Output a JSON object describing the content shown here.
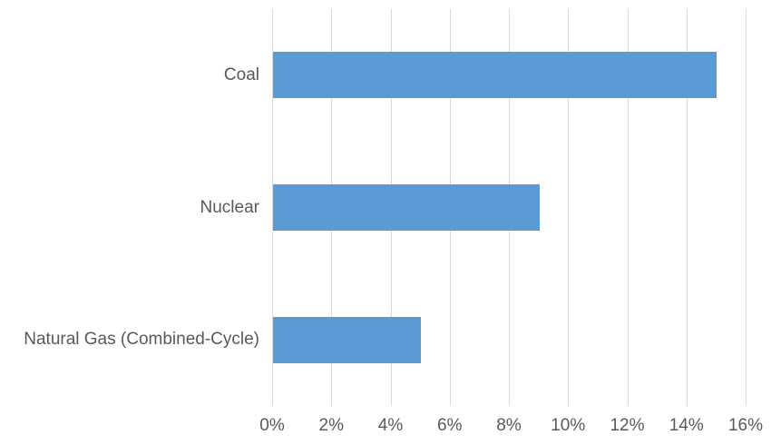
{
  "chart_data": {
    "type": "bar",
    "orientation": "horizontal",
    "title": "",
    "xlabel": "",
    "ylabel": "",
    "categories": [
      "Coal",
      "Nuclear",
      "Natural Gas (Combined-Cycle)"
    ],
    "values": [
      15,
      9,
      5
    ],
    "value_unit": "%",
    "xlim": [
      0,
      16
    ],
    "x_tick_step": 2,
    "x_tick_labels": [
      "0%",
      "2%",
      "4%",
      "6%",
      "8%",
      "10%",
      "12%",
      "14%",
      "16%"
    ],
    "grid": "vertical",
    "legend_position": "none",
    "colors": {
      "bar": "#5b9bd5",
      "gridline": "#d9d9d9",
      "axis_text": "#595959",
      "background": "#ffffff"
    }
  }
}
